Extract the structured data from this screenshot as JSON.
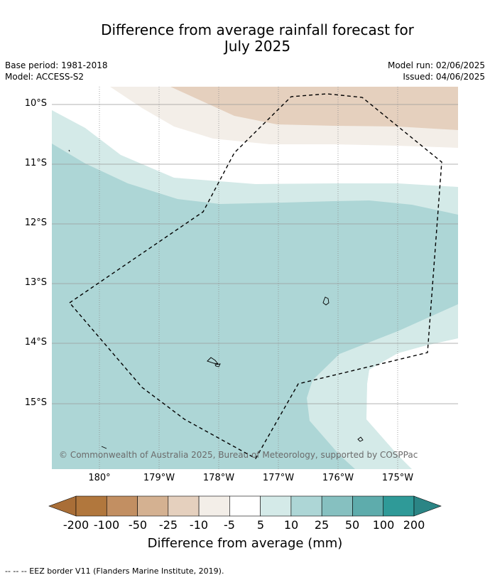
{
  "title": {
    "line1": "Difference from average rainfall forecast for",
    "line2": "July 2025"
  },
  "meta": {
    "base_period": "Base period: 1981-2018",
    "model": "Model: ACCESS-S2",
    "model_run": "Model run: 02/06/2025",
    "issued": "Issued: 04/06/2025"
  },
  "map": {
    "lat_labels": [
      "10°S",
      "11°S",
      "12°S",
      "13°S",
      "14°S",
      "15°S"
    ],
    "lon_labels": [
      "180°",
      "179°W",
      "178°W",
      "177°W",
      "176°W",
      "175°W"
    ],
    "copyright": "© Commonwealth of Australia 2025, Bureau of Meteorology, supported by COSPPac"
  },
  "colorbar": {
    "ticks": [
      "-200",
      "-100",
      "-50",
      "-25",
      "-10",
      "-5",
      "5",
      "10",
      "25",
      "50",
      "100",
      "200"
    ],
    "colors": [
      "#a96e37",
      "#b1773d",
      "#c28f62",
      "#d4b191",
      "#e5d0be",
      "#f3eee8",
      "#ffffff",
      "#d4eae8",
      "#add6d6",
      "#86c0c0",
      "#5eacac",
      "#2f9a98",
      "#2b8585"
    ],
    "label": "Difference from average (mm)"
  },
  "footnote": "--  --  -- EEZ border V11 (Flanders Marine Institute, 2019).",
  "palette": {
    "brown_light": "#e5d0be",
    "brown_faint": "#f3eee8",
    "teal_faint": "#d4eae8",
    "teal_light": "#add6d6"
  }
}
